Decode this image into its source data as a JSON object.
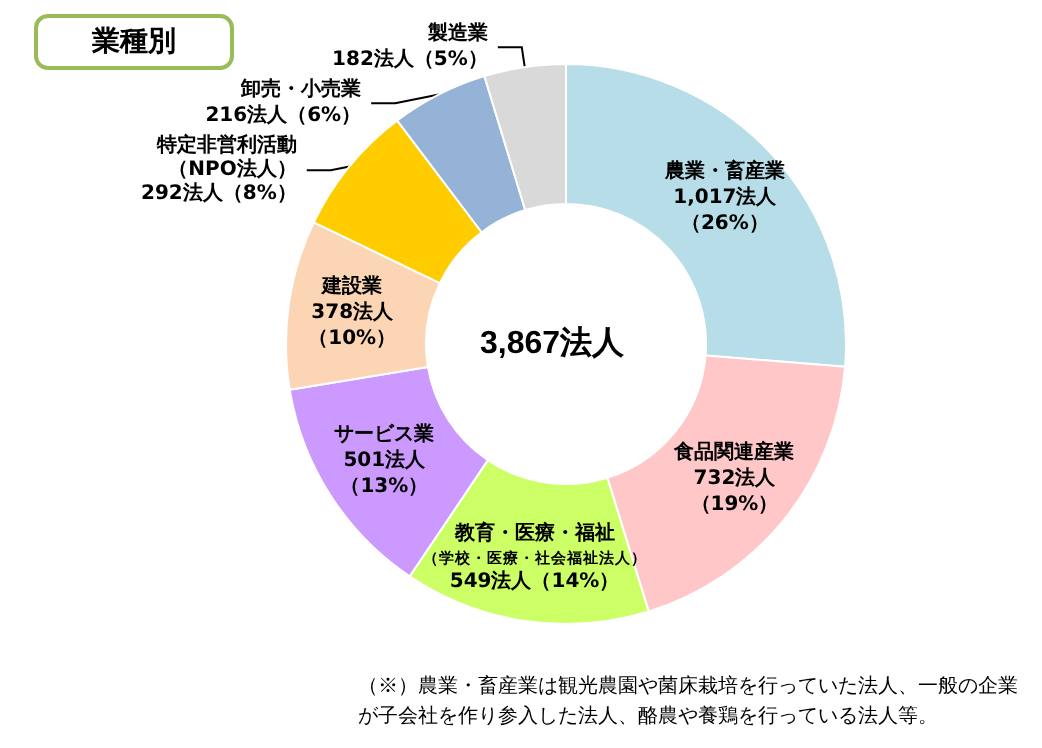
{
  "chart_data": {
    "type": "donut",
    "title": "業種別",
    "categories": [
      "農業・畜産業",
      "食品関連産業",
      "教育・医療・福祉（学校・医療・社会福祉法人）",
      "サービス業",
      "建設業",
      "特定非営利活動（NPO法人）",
      "卸売・小売業",
      "製造業"
    ],
    "values": [
      1017,
      732,
      549,
      501,
      378,
      292,
      216,
      182
    ],
    "value_labels": [
      "1,017法人（26%）",
      "732法人（19%）",
      "549法人（14%）",
      "501法人（13%）",
      "378法人（10%）",
      "292法人（8%）",
      "216法人（6%）",
      "182法人（5%）"
    ],
    "colors": [
      "#b7dde8",
      "#ffc7c7",
      "#ccff66",
      "#cc99ff",
      "#fcd5b5",
      "#ffcc00",
      "#95b3d7",
      "#d9d9d9"
    ],
    "annotations": [
      "3,867法人",
      "（※）農業・畜産業は観光農園や菌床栽培を行っていた法人、一般の企業が子会社を作り参入した法人、酪農や養鶏を行っている法人等。"
    ],
    "legend": false
  }
}
